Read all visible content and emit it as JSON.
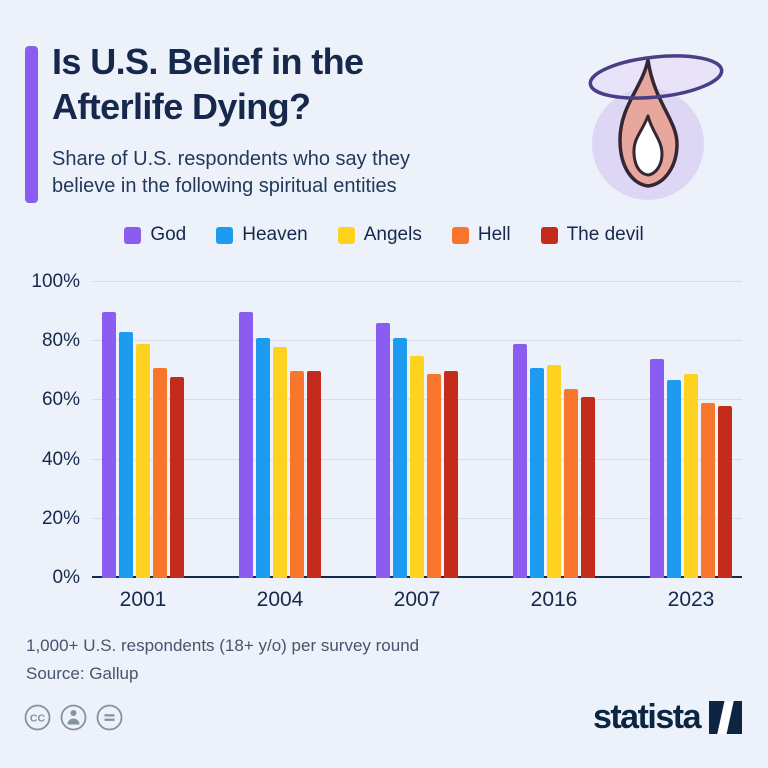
{
  "header": {
    "title_line1": "Is U.S. Belief in the",
    "title_line2": "Afterlife Dying?",
    "subtitle_line1": "Share of U.S. respondents who say they",
    "subtitle_line2": "believe in the following spiritual entities",
    "accent_color": "#8a5cf0"
  },
  "chart_data": {
    "type": "bar",
    "title": "Is U.S. Belief in the Afterlife Dying?",
    "subtitle": "Share of U.S. respondents who say they believe in the following spiritual entities",
    "categories": [
      "2001",
      "2004",
      "2007",
      "2016",
      "2023"
    ],
    "series": [
      {
        "name": "God",
        "color": "#8a5cf0",
        "values": [
          90,
          90,
          86,
          79,
          74
        ]
      },
      {
        "name": "Heaven",
        "color": "#1d9bf0",
        "values": [
          83,
          81,
          81,
          71,
          67
        ]
      },
      {
        "name": "Angels",
        "color": "#ffd21f",
        "values": [
          79,
          78,
          75,
          72,
          69
        ]
      },
      {
        "name": "Hell",
        "color": "#f8762b",
        "values": [
          71,
          70,
          69,
          64,
          59
        ]
      },
      {
        "name": "The devil",
        "color": "#c32b1a",
        "values": [
          68,
          70,
          70,
          61,
          58
        ]
      }
    ],
    "xlabel": "",
    "ylabel": "",
    "ylim": [
      0,
      100
    ],
    "yticks": [
      0,
      20,
      40,
      60,
      80,
      100
    ],
    "ytick_suffix": "%",
    "grid": true,
    "legend_position": "top"
  },
  "footer": {
    "line1": "1,000+ U.S. respondents (18+ y/o) per survey round",
    "line2": "Source: Gallup"
  },
  "license_icons": [
    {
      "name": "creative-commons-icon"
    },
    {
      "name": "attribution-icon"
    },
    {
      "name": "no-derivatives-icon"
    }
  ],
  "branding": {
    "logo_text": "statista",
    "logo_color": "#0c2642"
  }
}
